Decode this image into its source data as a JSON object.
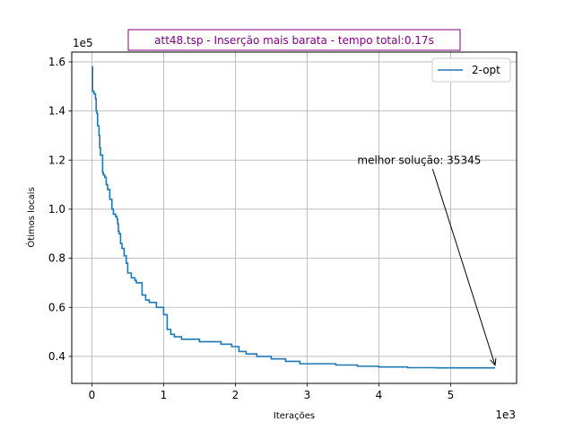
{
  "chart_data": {
    "type": "line",
    "title": "att48.tsp - Inserção mais barata - tempo total:0.17s",
    "title_color": "#800080",
    "xlabel": "Iterações",
    "ylabel": "Ótimos locais",
    "x_offset_label": "1e3",
    "y_offset_label": "1e5",
    "xlim": [
      -280,
      5920
    ],
    "ylim": [
      29000,
      164000
    ],
    "x_ticks": [
      0,
      1000,
      2000,
      3000,
      4000,
      5000
    ],
    "x_tick_labels": [
      "0",
      "1",
      "2",
      "3",
      "4",
      "5"
    ],
    "y_ticks": [
      40000,
      60000,
      80000,
      100000,
      120000,
      140000,
      160000
    ],
    "y_tick_labels": [
      "0.4",
      "0.6",
      "0.8",
      "1.0",
      "1.2",
      "1.4",
      "1.6"
    ],
    "grid": true,
    "legend": {
      "position": "top-right",
      "entries": [
        "2-opt"
      ]
    },
    "series": [
      {
        "name": "2-opt",
        "color": "#1f77b4",
        "step": true,
        "x": [
          0,
          10,
          20,
          30,
          50,
          60,
          70,
          80,
          100,
          110,
          120,
          150,
          160,
          180,
          200,
          220,
          250,
          280,
          300,
          330,
          350,
          360,
          370,
          380,
          400,
          420,
          450,
          480,
          500,
          550,
          600,
          620,
          700,
          750,
          800,
          900,
          1000,
          1050,
          1100,
          1150,
          1250,
          1350,
          1500,
          1650,
          1800,
          1950,
          2050,
          2150,
          2300,
          2500,
          2700,
          2900,
          3100,
          3400,
          3700,
          4000,
          4400,
          4800,
          5200,
          5620
        ],
        "values": [
          158000,
          148000,
          148000,
          147000,
          145000,
          140000,
          139000,
          134000,
          130000,
          125000,
          122000,
          115000,
          114000,
          113000,
          110000,
          108000,
          104000,
          100000,
          98000,
          97000,
          96000,
          94000,
          91000,
          90000,
          86000,
          84000,
          81000,
          78000,
          74000,
          72000,
          71000,
          70000,
          65000,
          63000,
          62000,
          60000,
          57000,
          51000,
          49000,
          48000,
          47000,
          47000,
          46000,
          46000,
          45000,
          44000,
          42000,
          41000,
          40000,
          39000,
          38000,
          37000,
          37000,
          36500,
          36000,
          35700,
          35400,
          35345,
          35345,
          35345
        ]
      }
    ],
    "annotation": {
      "text": "melhor solução: 35345",
      "x": 5620,
      "y": 35345,
      "text_x": 3700,
      "text_y": 120000
    }
  }
}
